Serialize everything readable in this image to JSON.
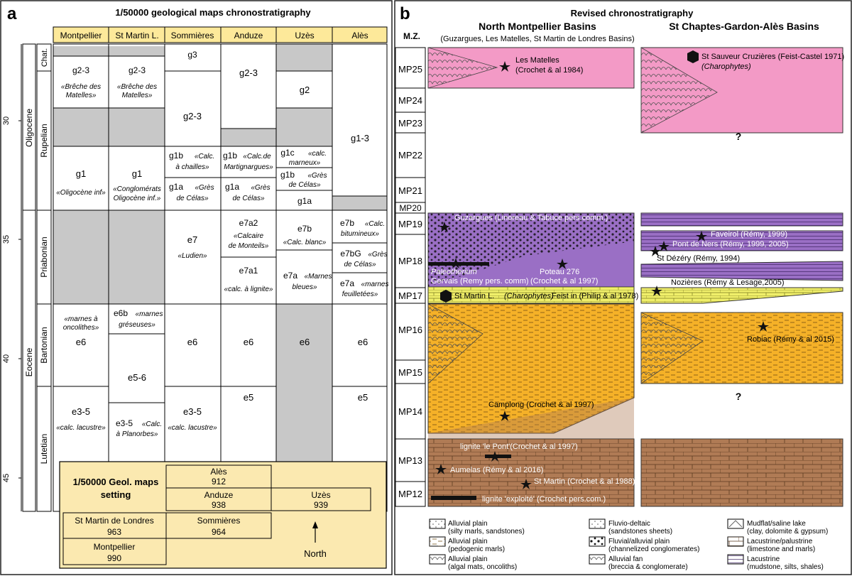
{
  "panel_a": {
    "letter": "a",
    "title": "1/50000 geological maps chronostratigraphy",
    "maps": [
      "Montpellier",
      "St Martin L.",
      "Sommières",
      "Anduze",
      "Uzès",
      "Alès"
    ],
    "ages": [
      "30",
      "35",
      "40",
      "45"
    ],
    "epochs": [
      "Oligocene",
      "Eocene"
    ],
    "stages": [
      "Chat.",
      "Rupelian",
      "Priabonian",
      "Bartonian",
      "Lutetian"
    ],
    "cells": {
      "mtp_g23": "g2-3",
      "mtp_g23_i": "«Brêche des",
      "mtp_g23_i2": "Matelles»",
      "mtp_g1": "g1",
      "mtp_g1_i": "«Oligocène inf»",
      "mtp_e6_i": "«marnes à",
      "mtp_e6_i2": "oncolithes»",
      "mtp_e6": "e6",
      "mtp_e35": "e3-5",
      "mtp_e35_i": "«calc. lacustre»",
      "sml_g23": "g2-3",
      "sml_g23_i": "«Brêche des",
      "sml_g23_i2": "Matelles»",
      "sml_g1": "g1",
      "sml_g1_i": "«Conglomérats",
      "sml_g1_i2": "Oligocène inf.»",
      "sml_e6b": "e6b",
      "sml_e6b_i": "«marnes",
      "sml_e6b_i2": "gréseuses»",
      "sml_e56": "e5-6",
      "sml_e35": "e3-5",
      "sml_e35_i": "«Calc.",
      "sml_e35_i2": "à Planorbes»",
      "som_g3": "g3",
      "som_g23": "g2-3",
      "som_g1b": "g1b",
      "som_g1b_i": "«Calc.",
      "som_g1b_i2": "à chailles»",
      "som_g1a": "g1a",
      "som_g1a_i": "«Grès",
      "som_g1a_i2": "de Célas»",
      "som_e7": "e7",
      "som_e7_i": "«Ludien»",
      "som_e6": "e6",
      "som_e35": "e3-5",
      "som_e35_i": "«calc. lacustre»",
      "and_g23": "g2-3",
      "and_g1b": "g1b",
      "and_g1b_i": "«Calc.de",
      "and_g1b_i2": "Martignargues»",
      "and_g1a": "g1a",
      "and_g1a_i": "«Grès",
      "and_g1a_i2": "de Célas»",
      "and_e7a2": "e7a2",
      "and_e7a2_i": "«Calcaire",
      "and_e7a2_i2": "de Monteils»",
      "and_e7a1": "e7a1",
      "and_e7a1_i": "«calc. à lignite»",
      "and_e6": "e6",
      "and_e5": "e5",
      "uz_g2": "g2",
      "uz_g1c": "g1c",
      "uz_g1c_i": "«calc.",
      "uz_g1c_i2": "marneux»",
      "uz_g1b": "g1b",
      "uz_g1b_i": "«Grès",
      "uz_g1b_i2": "de Célas»",
      "uz_g1a": "g1a",
      "uz_e7b": "e7b",
      "uz_e7b_i": "«Calc. blanc»",
      "uz_e7a": "e7a",
      "uz_e7a_i": "«Marnes",
      "uz_e7a_i2": "bleues»",
      "uz_e6": "e6",
      "al_g13": "g1-3",
      "al_e7b": "e7b",
      "al_e7b_i": "«Calc.",
      "al_e7b_i2": "bitumineux»",
      "al_e7bg": "e7bG",
      "al_e7bg_i": "«Grès",
      "al_e7bg_i2": "de Célas»",
      "al_e7a": "e7a",
      "al_e7a_i": "«marnes",
      "al_e7a_i2": "feuilletées»",
      "al_e6": "e6",
      "al_e5": "e5"
    },
    "setting": {
      "title1": "1/50000 Geol. maps",
      "title2": "setting",
      "sheets": [
        {
          "name": "Alès",
          "num": "912"
        },
        {
          "name": "Anduze",
          "num": "938"
        },
        {
          "name": "Uzès",
          "num": "939"
        },
        {
          "name": "St Martin de Londres",
          "num": "963"
        },
        {
          "name": "Sommières",
          "num": "964"
        },
        {
          "name": "Montpellier",
          "num": "990"
        }
      ],
      "north": "North"
    }
  },
  "panel_b": {
    "letter": "b",
    "title": "Revised chronostratigraphy",
    "mz_label": "M.Z.",
    "north_title": "North Montpellier Basins",
    "north_sub": "(Guzargues, Les Matelles, St Martin de Londres Basins)",
    "south_title": "St Chaptes-Gardon-Alès Basins",
    "zones": [
      "MP25",
      "MP24",
      "MP23",
      "MP22",
      "MP21",
      "MP20",
      "MP19",
      "MP18",
      "MP17",
      "MP16",
      "MP15",
      "MP14",
      "MP13",
      "MP12"
    ],
    "sites": {
      "matelles_1": "Les Matelles",
      "matelles_2": "(Crochet & al 1984)",
      "sauveur_1": "St Sauveur Cruzières (Feist-Castel 1971)",
      "sauveur_2": "(Charophytes)",
      "guzargues": "Guzargues (Linoreau & Tabuce pers.comm.)",
      "paleo_1": "Paleotherium",
      "paleo_2": "Gervais (Remy pers. comm)",
      "poteau_1": "Poteau 276",
      "poteau_2": "(Crochet & al 1997)",
      "stmartin_a": "St Martin L.",
      "stmartin_b": "(Charophytes)",
      "stmartin_c": "Feist in (Philip & al 1978)",
      "faveirol": "Faveirol (Rémy, 1999)",
      "pontners": "Pont de Ners (Rémy, 1999, 2005)",
      "stdezery": "St Dézéry (Rémy, 1994)",
      "nozieres": "Nozières (Rémy & Lesage,2005)",
      "robiac": "Robiac (Rémy & al 2015)",
      "camplong": "Camplong (Crochet & al 1997)",
      "lignite_pont": "lignite 'le Pont'(Crochet & al 1997)",
      "aumelas": "Aumelas (Rémy & al 2016)",
      "stmartin2": "St Martin (Crochet & al 1988)",
      "lignite_exp": "lignite 'exploité' (Crochet pers.com.)"
    },
    "question": "?"
  },
  "legend": [
    {
      "l1": "Alluvial plain",
      "l2": "(silty marls, sandstones)"
    },
    {
      "l1": "Alluvial plain",
      "l2": "(pedogenic marls)"
    },
    {
      "l1": "Alluvial plain",
      "l2": "(algal mats, oncoliths)"
    },
    {
      "l1": "Fluvio-deltaic",
      "l2": "(sandstones sheets)"
    },
    {
      "l1": "Fluvial/alluvial plain",
      "l2": "(channelized conglomerates)"
    },
    {
      "l1": "Alluvial fan",
      "l2": "(breccia & conglomerate)"
    },
    {
      "l1": "Mudflat/saline lake",
      "l2": "(clay, dolomite & gypsum)"
    },
    {
      "l1": "Lacustrine/palustrine",
      "l2": "(limestone and marls)"
    },
    {
      "l1": "Lacustrine",
      "l2": "(mudstone, silts, shales)"
    }
  ],
  "colors": {
    "header_fill": "#fde99a",
    "setting_fill": "#fbe9b0",
    "gray": "#c8c8c8",
    "pink": "#f39ac6",
    "purple": "#9a6fc5",
    "yellow": "#f0ef6a",
    "orange": "#f5b128",
    "brown": "#b07b55"
  }
}
